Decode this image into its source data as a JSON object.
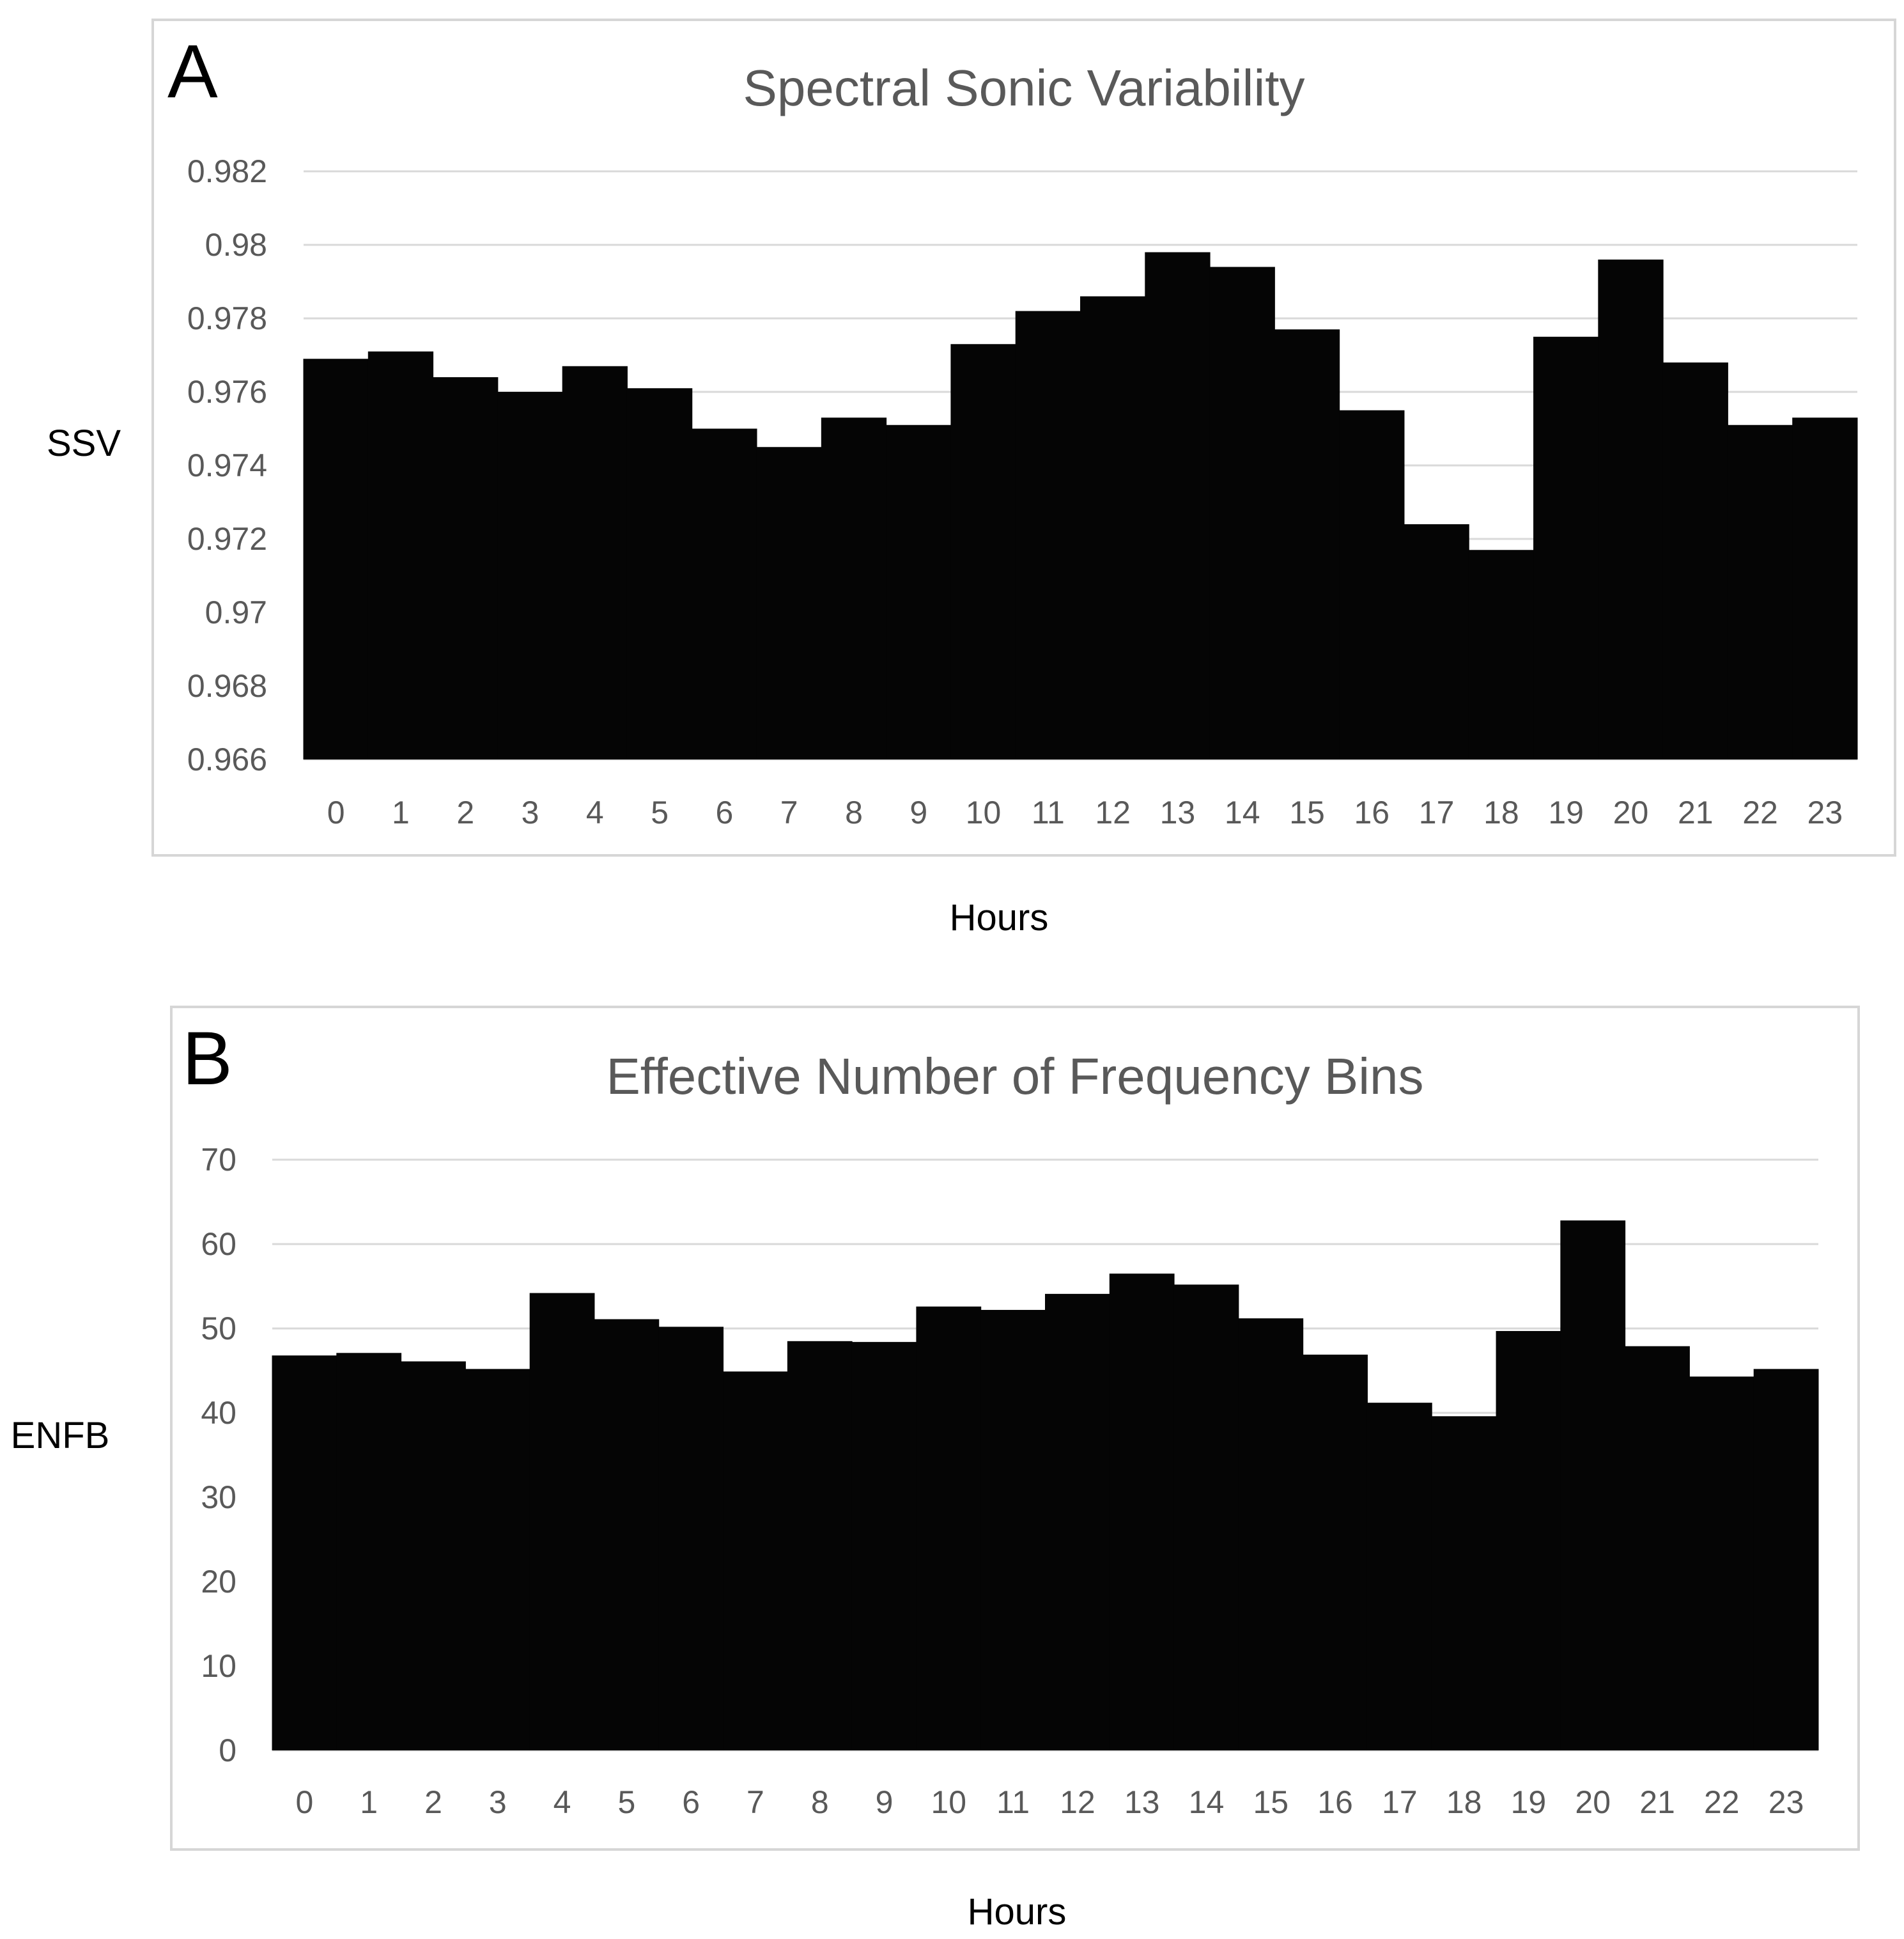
{
  "chart_data": [
    {
      "type": "bar",
      "panel_letter": "A",
      "title": "Spectral Sonic  Variability",
      "ylabel": "SSV",
      "xlabel": "Hours",
      "categories": [
        "0",
        "1",
        "2",
        "3",
        "4",
        "5",
        "6",
        "7",
        "8",
        "9",
        "10",
        "11",
        "12",
        "13",
        "14",
        "15",
        "16",
        "17",
        "18",
        "19",
        "20",
        "21",
        "22",
        "23"
      ],
      "values": [
        0.9769,
        0.9771,
        0.9764,
        0.976,
        0.9767,
        0.9761,
        0.975,
        0.9745,
        0.9753,
        0.9751,
        0.9773,
        0.9782,
        0.9786,
        0.9798,
        0.9794,
        0.9777,
        0.9755,
        0.9724,
        0.9717,
        0.9775,
        0.9796,
        0.9768,
        0.9751,
        0.9753
      ],
      "ylim": [
        0.966,
        0.982
      ],
      "yticks": [
        0.966,
        0.968,
        0.97,
        0.972,
        0.974,
        0.976,
        0.978,
        0.98,
        0.982
      ],
      "ytick_labels": [
        "0.966",
        "0.968",
        "0.97",
        "0.972",
        "0.974",
        "0.976",
        "0.978",
        "0.98",
        "0.982"
      ],
      "grid": true,
      "bar_color": "#050505"
    },
    {
      "type": "bar",
      "panel_letter": "B",
      "title": "Effective Number of Frequency Bins",
      "ylabel": "ENFB",
      "xlabel": "Hours",
      "categories": [
        "0",
        "1",
        "2",
        "3",
        "4",
        "5",
        "6",
        "7",
        "8",
        "9",
        "10",
        "11",
        "12",
        "13",
        "14",
        "15",
        "16",
        "17",
        "18",
        "19",
        "20",
        "21",
        "22",
        "23"
      ],
      "values": [
        46.8,
        47.1,
        46.1,
        45.2,
        54.2,
        51.1,
        50.2,
        44.9,
        48.5,
        48.4,
        52.6,
        52.2,
        54.1,
        56.5,
        55.2,
        51.2,
        46.9,
        41.2,
        39.6,
        49.7,
        62.8,
        47.9,
        44.3,
        45.2
      ],
      "ylim": [
        0,
        70
      ],
      "yticks": [
        0,
        10,
        20,
        30,
        40,
        50,
        60,
        70
      ],
      "ytick_labels": [
        "0",
        "10",
        "20",
        "30",
        "40",
        "50",
        "60",
        "70"
      ],
      "grid": true,
      "bar_color": "#050505"
    }
  ]
}
